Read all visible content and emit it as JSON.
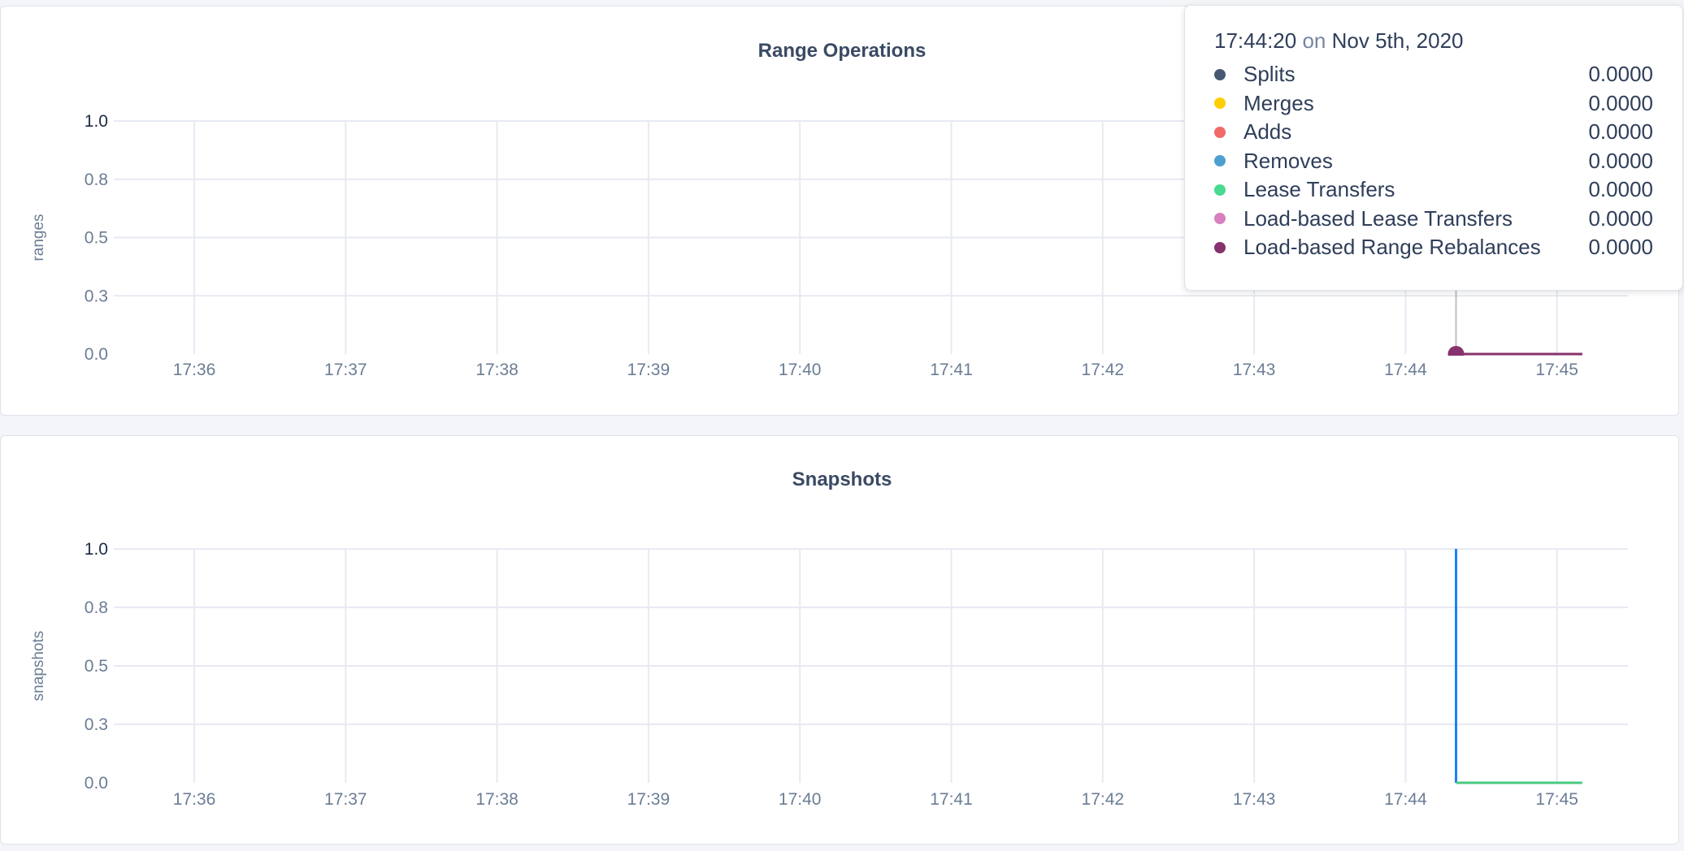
{
  "chart_data": [
    {
      "type": "line",
      "title": "Range Operations",
      "ylabel": "ranges",
      "xlabel": "",
      "x_ticks": [
        "17:36",
        "17:37",
        "17:38",
        "17:39",
        "17:40",
        "17:41",
        "17:42",
        "17:43",
        "17:44",
        "17:45"
      ],
      "y_ticks": [
        "1.0",
        "0.8",
        "0.5",
        "0.3",
        "0.0"
      ],
      "ylim": [
        0,
        1
      ],
      "grid": true,
      "series": [
        {
          "name": "Splits",
          "color": "#475872",
          "points": [
            [
              "17:44:20",
              0
            ],
            [
              "17:45:10",
              0
            ]
          ]
        },
        {
          "name": "Merges",
          "color": "#ffcd02",
          "points": [
            [
              "17:44:20",
              0
            ],
            [
              "17:45:10",
              0
            ]
          ]
        },
        {
          "name": "Adds",
          "color": "#f16969",
          "points": [
            [
              "17:44:20",
              0
            ],
            [
              "17:45:10",
              0
            ]
          ]
        },
        {
          "name": "Removes",
          "color": "#4e9fd1",
          "points": [
            [
              "17:44:20",
              0
            ],
            [
              "17:45:10",
              0
            ]
          ]
        },
        {
          "name": "Lease Transfers",
          "color": "#49d990",
          "points": [
            [
              "17:44:20",
              0
            ],
            [
              "17:45:10",
              0
            ]
          ]
        },
        {
          "name": "Load-based Lease Transfers",
          "color": "#d77fbf",
          "points": [
            [
              "17:44:20",
              0
            ],
            [
              "17:45:10",
              0
            ]
          ]
        },
        {
          "name": "Load-based Range Rebalances",
          "color": "#87326d",
          "points": [
            [
              "17:44:20",
              0
            ],
            [
              "17:45:10",
              0
            ]
          ]
        }
      ],
      "hover_x": "17:44:20",
      "tooltip": {
        "time": "17:44:20",
        "on": "on",
        "date": "Nov 5th, 2020",
        "rows": [
          {
            "name": "Splits",
            "value": "0.0000",
            "color": "#475872"
          },
          {
            "name": "Merges",
            "value": "0.0000",
            "color": "#ffcd02"
          },
          {
            "name": "Adds",
            "value": "0.0000",
            "color": "#f16969"
          },
          {
            "name": "Removes",
            "value": "0.0000",
            "color": "#4e9fd1"
          },
          {
            "name": "Lease Transfers",
            "value": "0.0000",
            "color": "#49d990"
          },
          {
            "name": "Load-based Lease Transfers",
            "value": "0.0000",
            "color": "#d77fbf"
          },
          {
            "name": "Load-based Range Rebalances",
            "value": "0.0000",
            "color": "#87326d"
          }
        ]
      }
    },
    {
      "type": "line",
      "title": "Snapshots",
      "ylabel": "snapshots",
      "xlabel": "",
      "x_ticks": [
        "17:36",
        "17:37",
        "17:38",
        "17:39",
        "17:40",
        "17:41",
        "17:42",
        "17:43",
        "17:44",
        "17:45"
      ],
      "y_ticks": [
        "1.0",
        "0.8",
        "0.5",
        "0.3",
        "0.0"
      ],
      "ylim": [
        0,
        1
      ],
      "grid": true,
      "series": [
        {
          "color": "#1a82f5",
          "points": [
            [
              "17:44:20",
              1
            ],
            [
              "17:44:20",
              0
            ]
          ]
        },
        {
          "color": "#49c97f",
          "points": [
            [
              "17:44:20",
              0
            ],
            [
              "17:45:10",
              0
            ]
          ]
        }
      ]
    }
  ]
}
